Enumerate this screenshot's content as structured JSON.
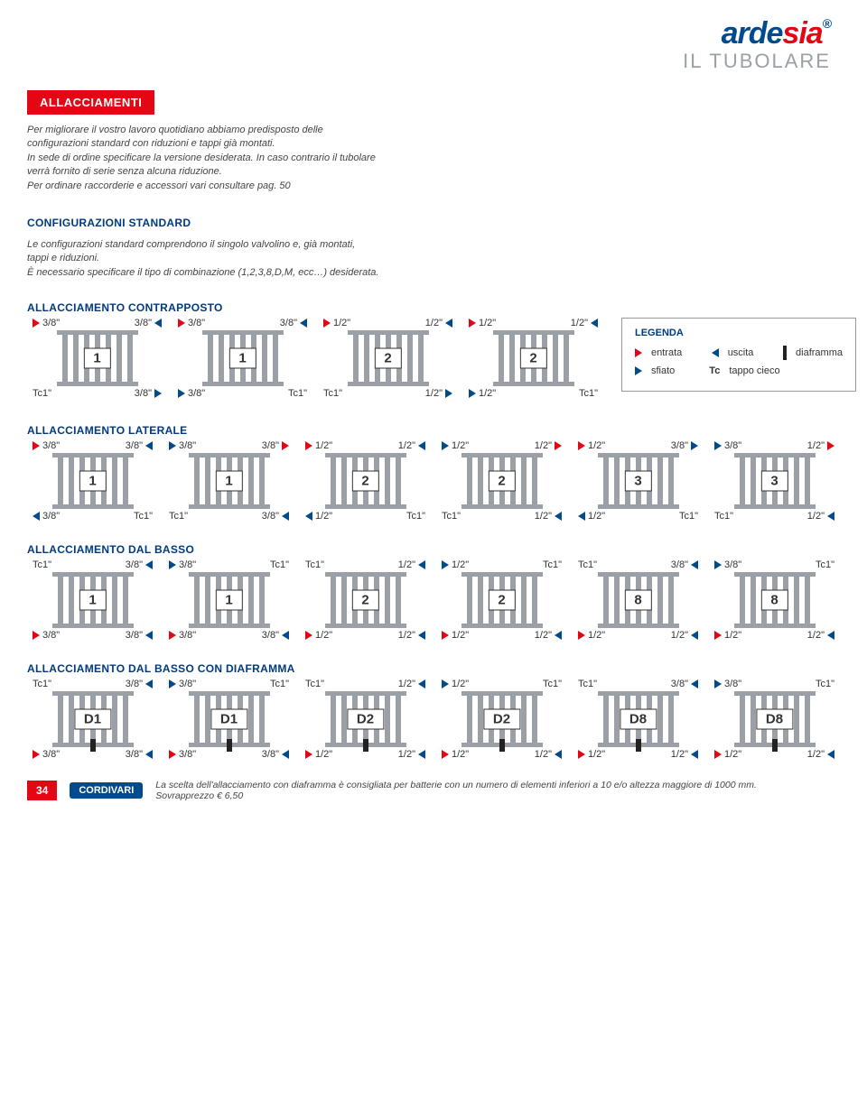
{
  "brand": {
    "name_a": "arde",
    "name_b": "sia",
    "tagline": "IL TUBOLARE",
    "reg": "®"
  },
  "badge": "ALLACCIAMENTI",
  "intro": "Per migliorare il vostro lavoro quotidiano abbiamo predisposto delle configurazioni standard con riduzioni e tappi già montati.\nIn sede di ordine specificare la versione desiderata. In caso contrario il tubolare verrà fornito di serie senza alcuna riduzione.\nPer ordinare raccorderie e accessori vari consultare pag. 50",
  "config_head": "CONFIGURAZIONI STANDARD",
  "config_text": "Le configurazioni standard comprendono il singolo valvolino e, già montati, tappi e riduzioni.\nÈ necessario specificare il tipo di combinazione (1,2,3,8,D,M, ecc…) desiderata.",
  "legend": {
    "title": "LEGENDA",
    "entrata": "entrata",
    "uscita": "uscita",
    "diaframma": "diaframma",
    "sfiato": "sfiato",
    "tappo": "tappo cieco",
    "tc": "Tc"
  },
  "sections": {
    "contrapposto": "ALLACCIAMENTO CONTRAPPOSTO",
    "laterale": "ALLACCIAMENTO LATERALE",
    "basso": "ALLACCIAMENTO DAL BASSO",
    "basso_dia": "ALLACCIAMENTO DAL BASSO CON DIAFRAMMA"
  },
  "sizes": {
    "s38": "3/8\"",
    "s12": "1/2\"",
    "tc1": "Tc1\""
  },
  "contrapposto": [
    {
      "num": "1",
      "tl": [
        "in",
        "3/8\""
      ],
      "tr": [
        "3/8\"",
        "out"
      ],
      "bl": [
        "Tc1\""
      ],
      "br": [
        "3/8\"",
        "sf"
      ]
    },
    {
      "num": "1",
      "tl": [
        "in",
        "3/8\""
      ],
      "tr": [
        "3/8\"",
        "out"
      ],
      "bl": [
        "sf",
        "3/8\""
      ],
      "br": [
        "Tc1\""
      ]
    },
    {
      "num": "2",
      "tl": [
        "in",
        "1/2\""
      ],
      "tr": [
        "1/2\"",
        "out"
      ],
      "bl": [
        "Tc1\""
      ],
      "br": [
        "1/2\"",
        "sf"
      ]
    },
    {
      "num": "2",
      "tl": [
        "in",
        "1/2\""
      ],
      "tr": [
        "1/2\"",
        "out"
      ],
      "bl": [
        "sf",
        "1/2\""
      ],
      "br": [
        "Tc1\""
      ]
    }
  ],
  "laterale": [
    {
      "num": "1",
      "tl": [
        "in",
        "3/8\""
      ],
      "tr": [
        "3/8\"",
        "out"
      ],
      "bl": [
        "out",
        "3/8\""
      ],
      "br": [
        "Tc1\""
      ]
    },
    {
      "num": "1",
      "tl": [
        "sf",
        "3/8\""
      ],
      "tr": [
        "3/8\"",
        "in"
      ],
      "bl": [
        "Tc1\""
      ],
      "br": [
        "3/8\"",
        "out"
      ]
    },
    {
      "num": "2",
      "tl": [
        "in",
        "1/2\""
      ],
      "tr": [
        "1/2\"",
        "out"
      ],
      "bl": [
        "out",
        "1/2\""
      ],
      "br": [
        "Tc1\""
      ]
    },
    {
      "num": "2",
      "tl": [
        "sf",
        "1/2\""
      ],
      "tr": [
        "1/2\"",
        "in"
      ],
      "bl": [
        "Tc1\""
      ],
      "br": [
        "1/2\"",
        "out"
      ]
    },
    {
      "num": "3",
      "tl": [
        "in",
        "1/2\""
      ],
      "tr": [
        "3/8\"",
        "sf"
      ],
      "bl": [
        "out",
        "1/2\""
      ],
      "br": [
        "Tc1\""
      ]
    },
    {
      "num": "3",
      "tl": [
        "sf",
        "3/8\""
      ],
      "tr": [
        "1/2\"",
        "in"
      ],
      "bl": [
        "Tc1\""
      ],
      "br": [
        "1/2\"",
        "out"
      ]
    }
  ],
  "basso": [
    {
      "num": "1",
      "tl": [
        "Tc1\""
      ],
      "tr": [
        "3/8\"",
        "out"
      ],
      "bl": [
        "in",
        "3/8\""
      ],
      "br": [
        "3/8\"",
        "out"
      ]
    },
    {
      "num": "1",
      "tl": [
        "sf",
        "3/8\""
      ],
      "tr": [
        "Tc1\""
      ],
      "bl": [
        "in",
        "3/8\""
      ],
      "br": [
        "3/8\"",
        "out"
      ]
    },
    {
      "num": "2",
      "tl": [
        "Tc1\""
      ],
      "tr": [
        "1/2\"",
        "out"
      ],
      "bl": [
        "in",
        "1/2\""
      ],
      "br": [
        "1/2\"",
        "out"
      ]
    },
    {
      "num": "2",
      "tl": [
        "sf",
        "1/2\""
      ],
      "tr": [
        "Tc1\""
      ],
      "bl": [
        "in",
        "1/2\""
      ],
      "br": [
        "1/2\"",
        "out"
      ]
    },
    {
      "num": "8",
      "tl": [
        "Tc1\""
      ],
      "tr": [
        "3/8\"",
        "out"
      ],
      "bl": [
        "in",
        "1/2\""
      ],
      "br": [
        "1/2\"",
        "out"
      ]
    },
    {
      "num": "8",
      "tl": [
        "sf",
        "3/8\""
      ],
      "tr": [
        "Tc1\""
      ],
      "bl": [
        "in",
        "1/2\""
      ],
      "br": [
        "1/2\"",
        "out"
      ]
    }
  ],
  "basso_dia": [
    {
      "num": "D1",
      "tl": [
        "Tc1\""
      ],
      "tr": [
        "3/8\"",
        "out"
      ],
      "bl": [
        "in",
        "3/8\""
      ],
      "br": [
        "3/8\"",
        "out"
      ]
    },
    {
      "num": "D1",
      "tl": [
        "sf",
        "3/8\""
      ],
      "tr": [
        "Tc1\""
      ],
      "bl": [
        "in",
        "3/8\""
      ],
      "br": [
        "3/8\"",
        "out"
      ]
    },
    {
      "num": "D2",
      "tl": [
        "Tc1\""
      ],
      "tr": [
        "1/2\"",
        "out"
      ],
      "bl": [
        "in",
        "1/2\""
      ],
      "br": [
        "1/2\"",
        "out"
      ]
    },
    {
      "num": "D2",
      "tl": [
        "sf",
        "1/2\""
      ],
      "tr": [
        "Tc1\""
      ],
      "bl": [
        "in",
        "1/2\""
      ],
      "br": [
        "1/2\"",
        "out"
      ]
    },
    {
      "num": "D8",
      "tl": [
        "Tc1\""
      ],
      "tr": [
        "3/8\"",
        "out"
      ],
      "bl": [
        "in",
        "1/2\""
      ],
      "br": [
        "1/2\"",
        "out"
      ]
    },
    {
      "num": "D8",
      "tl": [
        "sf",
        "3/8\""
      ],
      "tr": [
        "Tc1\""
      ],
      "bl": [
        "in",
        "1/2\""
      ],
      "br": [
        "1/2\"",
        "out"
      ]
    }
  ],
  "footer": {
    "page": "34",
    "brand": "CORDIVARI",
    "note1": "La scelta dell'allacciamento con diaframma è consigliata per batterie con un numero di elementi inferiori a 10 e/o altezza maggiore di 1000 mm.",
    "note2": "Sovrapprezzo € 6,50"
  },
  "colors": {
    "red": "#e30613",
    "blue": "#004b8d",
    "grey": "#9aa0a6"
  }
}
